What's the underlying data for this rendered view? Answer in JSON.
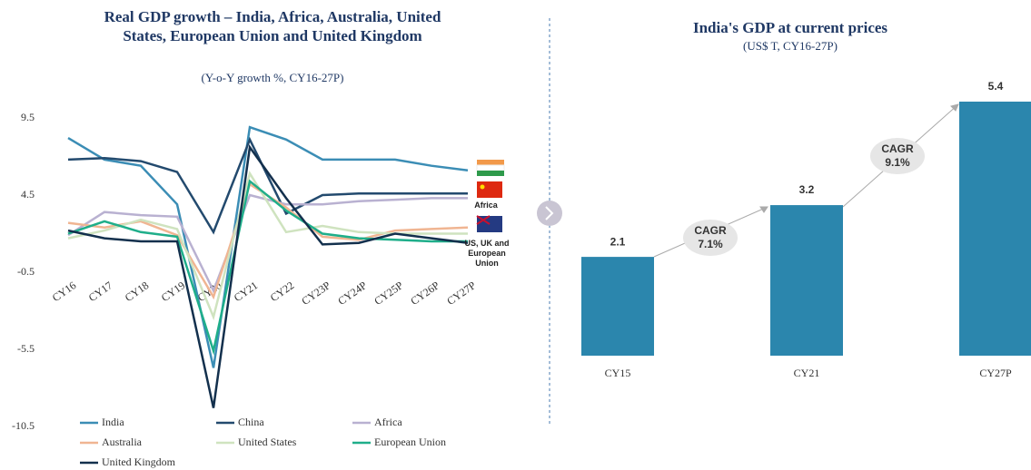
{
  "chart_data": [
    {
      "type": "line",
      "title": "Real GDP growth – India, Africa, Australia, United States, European Union and United Kingdom",
      "subtitle": "(Y-o-Y growth %, CY16-27P)",
      "categories": [
        "CY16",
        "CY17",
        "CY18",
        "CY19",
        "CY20",
        "CY21",
        "CY22",
        "CY23P",
        "CY24P",
        "CY25P",
        "CY26P",
        "CY27P"
      ],
      "ylim": [
        -10.5,
        9.5
      ],
      "yticks": [
        -10.5,
        -5.5,
        -0.5,
        4.5,
        9.5
      ],
      "annotations": [
        "Africa",
        "US, UK and European Union"
      ],
      "series": [
        {
          "name": "India",
          "color": "#3b8db5",
          "values": [
            8.2,
            6.8,
            6.4,
            3.9,
            -6.7,
            8.9,
            8.1,
            6.8,
            6.8,
            6.8,
            6.4,
            6.1
          ]
        },
        {
          "name": "China",
          "color": "#234a6e",
          "values": [
            6.8,
            6.9,
            6.7,
            6.0,
            2.1,
            8.1,
            3.3,
            4.5,
            4.6,
            4.6,
            4.6,
            4.6
          ]
        },
        {
          "name": "Africa",
          "color": "#b9b1d1",
          "values": [
            1.9,
            3.4,
            3.2,
            3.1,
            -1.7,
            4.5,
            3.9,
            3.9,
            4.1,
            4.2,
            4.3,
            4.3
          ]
        },
        {
          "name": "Australia",
          "color": "#f0b592",
          "values": [
            2.7,
            2.4,
            2.8,
            1.9,
            -2.1,
            5.2,
            3.7,
            1.8,
            1.6,
            2.2,
            2.3,
            2.4
          ]
        },
        {
          "name": "United States",
          "color": "#cfe3bf",
          "values": [
            1.7,
            2.2,
            2.9,
            2.3,
            -3.4,
            5.9,
            2.1,
            2.5,
            2.1,
            2.0,
            2.0,
            2.0
          ]
        },
        {
          "name": "European Union",
          "color": "#1fae8a",
          "values": [
            2.0,
            2.8,
            2.1,
            1.8,
            -5.6,
            5.4,
            3.5,
            2.0,
            1.7,
            1.6,
            1.5,
            1.5
          ]
        },
        {
          "name": "United Kingdom",
          "color": "#13304d",
          "values": [
            2.2,
            1.7,
            1.5,
            1.5,
            -9.3,
            7.6,
            4.3,
            1.3,
            1.4,
            2.0,
            1.7,
            1.4
          ]
        }
      ]
    },
    {
      "type": "bar",
      "title": "India's GDP at current prices",
      "subtitle": "(US$ T, CY16-27P)",
      "categories": [
        "CY15",
        "CY21",
        "CY27P"
      ],
      "values": [
        2.1,
        3.2,
        5.4
      ],
      "color": "#2b86ad",
      "annotations": [
        {
          "label": "CAGR",
          "value": "7.1%"
        },
        {
          "label": "CAGR",
          "value": "9.1%"
        }
      ]
    }
  ]
}
